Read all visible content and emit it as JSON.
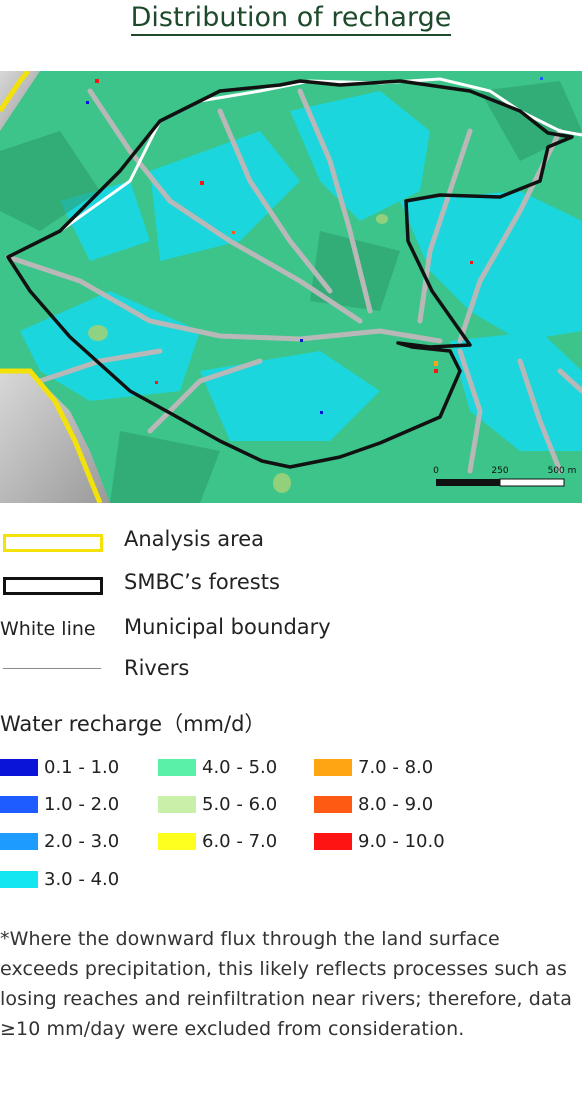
{
  "title": "Distribution of recharge",
  "map": {
    "scale_bar": {
      "labels": [
        "0",
        "250",
        "500 m"
      ]
    }
  },
  "legend": {
    "items": [
      {
        "label": "Analysis area",
        "symbol": "yellow-outline-box",
        "color": "#f2e20a"
      },
      {
        "label": "SMBC’s forests",
        "symbol": "black-outline-box",
        "color": "#111111"
      },
      {
        "label": "Municipal boundary",
        "symbol_text": "White line"
      },
      {
        "label": "Rivers",
        "symbol": "gray-line",
        "color": "#8a8a8a"
      }
    ]
  },
  "recharge_legend": {
    "title": "Water recharge（mm/d）",
    "classes": [
      {
        "label": "0.1 - 1.0",
        "color": "#0a14d8"
      },
      {
        "label": "1.0 - 2.0",
        "color": "#1e5cff"
      },
      {
        "label": "2.0 - 3.0",
        "color": "#1e9bff"
      },
      {
        "label": "3.0 - 4.0",
        "color": "#14e6f0"
      },
      {
        "label": "4.0 - 5.0",
        "color": "#5af0a8"
      },
      {
        "label": "5.0 - 6.0",
        "color": "#c8f0a8"
      },
      {
        "label": "6.0 - 7.0",
        "color": "#ffff1e"
      },
      {
        "label": "7.0 - 8.0",
        "color": "#ffa514"
      },
      {
        "label": "8.0 - 9.0",
        "color": "#ff5a14"
      },
      {
        "label": "9.0 - 10.0",
        "color": "#ff1414"
      }
    ]
  },
  "footnote": "*Where the downward flux through the land surface exceeds precipitation, this likely reflects processes such as losing reaches and reinfiltration near rivers; therefore, data ≥10 mm/day were excluded from consideration."
}
